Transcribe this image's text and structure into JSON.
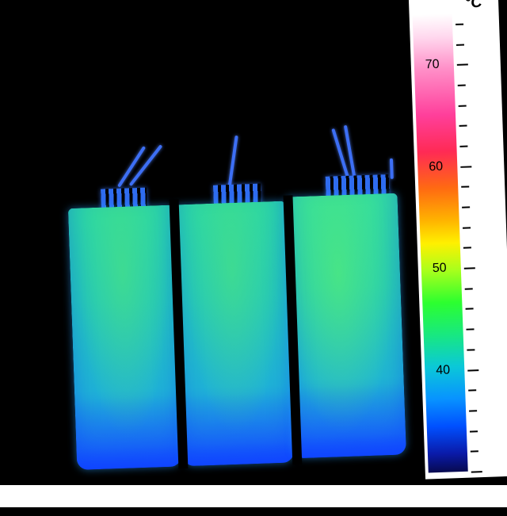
{
  "scale": {
    "unit": "°C",
    "labels": [
      "70",
      "60",
      "50",
      "40"
    ],
    "range": [
      30,
      75
    ],
    "colors": {
      "hot": "#ffffff",
      "mid": "#fff000",
      "warm": "#2cff2f",
      "cool": "#0893ff",
      "cold": "#070a50"
    }
  }
}
